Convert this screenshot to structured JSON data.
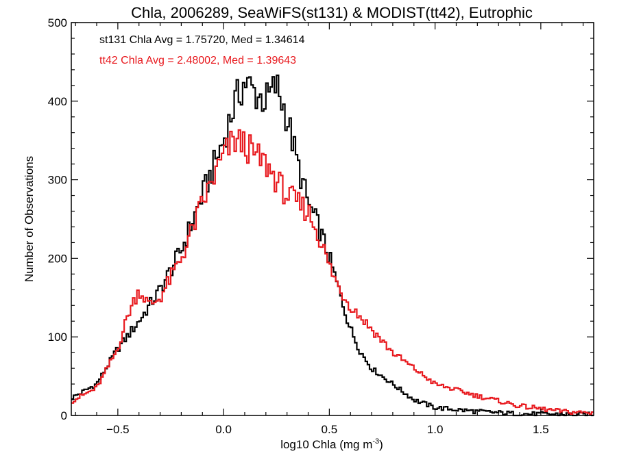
{
  "chart_data": {
    "type": "step-histogram",
    "title": "Chla, 2006289, SeaWiFS(st131) & MODIST(tt42), Eutrophic",
    "xlabel": "log10 Chla (mg m",
    "xlabel_superscript": "-3",
    "xlabel_suffix": ")",
    "ylabel": "Number of Observations",
    "xlim": [
      -0.72,
      1.75
    ],
    "ylim": [
      0,
      500
    ],
    "xticks": [
      -0.5,
      0.0,
      0.5,
      1.0,
      1.5
    ],
    "xtick_labels": [
      "−0.5",
      "0.0",
      "0.5",
      "1.0",
      "1.5"
    ],
    "yticks": [
      0,
      100,
      200,
      300,
      400,
      500
    ],
    "ytick_labels": [
      "0",
      "100",
      "200",
      "300",
      "400",
      "500"
    ],
    "grid": false,
    "annotations": [
      {
        "text": "st131 Chla Avg = 1.75720, Med = 1.34614",
        "color": "#000000"
      },
      {
        "text": "tt42 Chla Avg = 2.48002, Med = 1.39643",
        "color": "#e8191e"
      }
    ],
    "series": [
      {
        "id": "st131",
        "color": "#000000",
        "x": [
          -0.72,
          -0.6,
          -0.5,
          -0.4,
          -0.3,
          -0.2,
          -0.1,
          0.0,
          0.05,
          0.1,
          0.15,
          0.2,
          0.25,
          0.3,
          0.35,
          0.4,
          0.45,
          0.5,
          0.55,
          0.6,
          0.65,
          0.7,
          0.8,
          0.9,
          1.0,
          1.2,
          1.4,
          1.75
        ],
        "y": [
          22,
          40,
          85,
          120,
          160,
          210,
          280,
          350,
          395,
          425,
          410,
          400,
          420,
          380,
          320,
          270,
          240,
          200,
          155,
          110,
          80,
          60,
          40,
          20,
          10,
          5,
          2,
          1
        ]
      },
      {
        "id": "tt42",
        "color": "#e8191e",
        "x": [
          -0.72,
          -0.6,
          -0.5,
          -0.45,
          -0.4,
          -0.35,
          -0.3,
          -0.2,
          -0.1,
          0.0,
          0.05,
          0.1,
          0.15,
          0.2,
          0.25,
          0.3,
          0.35,
          0.4,
          0.45,
          0.5,
          0.55,
          0.6,
          0.65,
          0.7,
          0.8,
          0.9,
          1.0,
          1.2,
          1.4,
          1.6,
          1.75
        ],
        "y": [
          18,
          35,
          85,
          130,
          160,
          140,
          150,
          200,
          270,
          330,
          350,
          345,
          330,
          320,
          300,
          280,
          270,
          260,
          230,
          190,
          160,
          140,
          125,
          110,
          80,
          60,
          40,
          25,
          12,
          5,
          3
        ]
      }
    ]
  }
}
